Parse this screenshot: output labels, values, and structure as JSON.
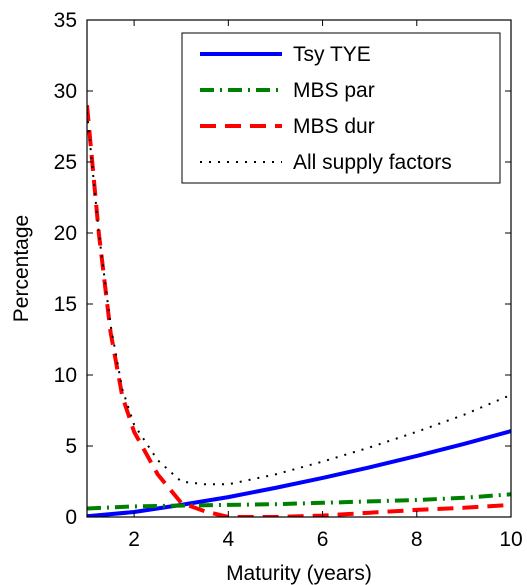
{
  "chart_data": {
    "type": "line",
    "xlabel": "Maturity (years)",
    "ylabel": "Percentage",
    "xlim": [
      1,
      10
    ],
    "ylim": [
      0,
      35
    ],
    "xticks": [
      2,
      4,
      6,
      8,
      10
    ],
    "yticks": [
      0,
      5,
      10,
      15,
      20,
      25,
      30,
      35
    ],
    "xtick_labels": [
      "2",
      "4",
      "6",
      "8",
      "10"
    ],
    "ytick_labels": [
      "0",
      "5",
      "10",
      "15",
      "20",
      "25",
      "30",
      "35"
    ],
    "grid": false,
    "legend_position": "top-right",
    "series": [
      {
        "name": "Tsy TYE",
        "color": "#0000ff",
        "style": "solid",
        "x": [
          1,
          2,
          3,
          4,
          5,
          6,
          7,
          8,
          9,
          10
        ],
        "y": [
          0.05,
          0.35,
          0.85,
          1.4,
          2.05,
          2.75,
          3.5,
          4.3,
          5.15,
          6.05
        ]
      },
      {
        "name": "MBS par",
        "color": "#008000",
        "style": "dashdot",
        "x": [
          1,
          2,
          3,
          4,
          5,
          6,
          7,
          8,
          9,
          10
        ],
        "y": [
          0.6,
          0.75,
          0.8,
          0.85,
          0.9,
          1.0,
          1.1,
          1.2,
          1.35,
          1.6
        ]
      },
      {
        "name": "MBS dur",
        "color": "#ff0000",
        "style": "dashed",
        "x": [
          1,
          1.25,
          1.5,
          1.75,
          2,
          2.5,
          3,
          3.5,
          4,
          5,
          6,
          7,
          8,
          9,
          10
        ],
        "y": [
          29.0,
          20.0,
          13.0,
          8.5,
          6.0,
          3.0,
          1.0,
          0.4,
          0.0,
          0.0,
          0.1,
          0.3,
          0.5,
          0.65,
          0.85
        ]
      },
      {
        "name": "All supply factors",
        "color": "#000000",
        "style": "dotted",
        "x": [
          1,
          1.25,
          1.5,
          1.75,
          2,
          2.5,
          3,
          3.5,
          4,
          5,
          6,
          7,
          8,
          9,
          10
        ],
        "y": [
          28.5,
          20.0,
          13.5,
          9.0,
          6.5,
          4.0,
          2.5,
          2.3,
          2.3,
          3.0,
          3.9,
          4.9,
          6.0,
          7.2,
          8.6
        ]
      }
    ]
  }
}
